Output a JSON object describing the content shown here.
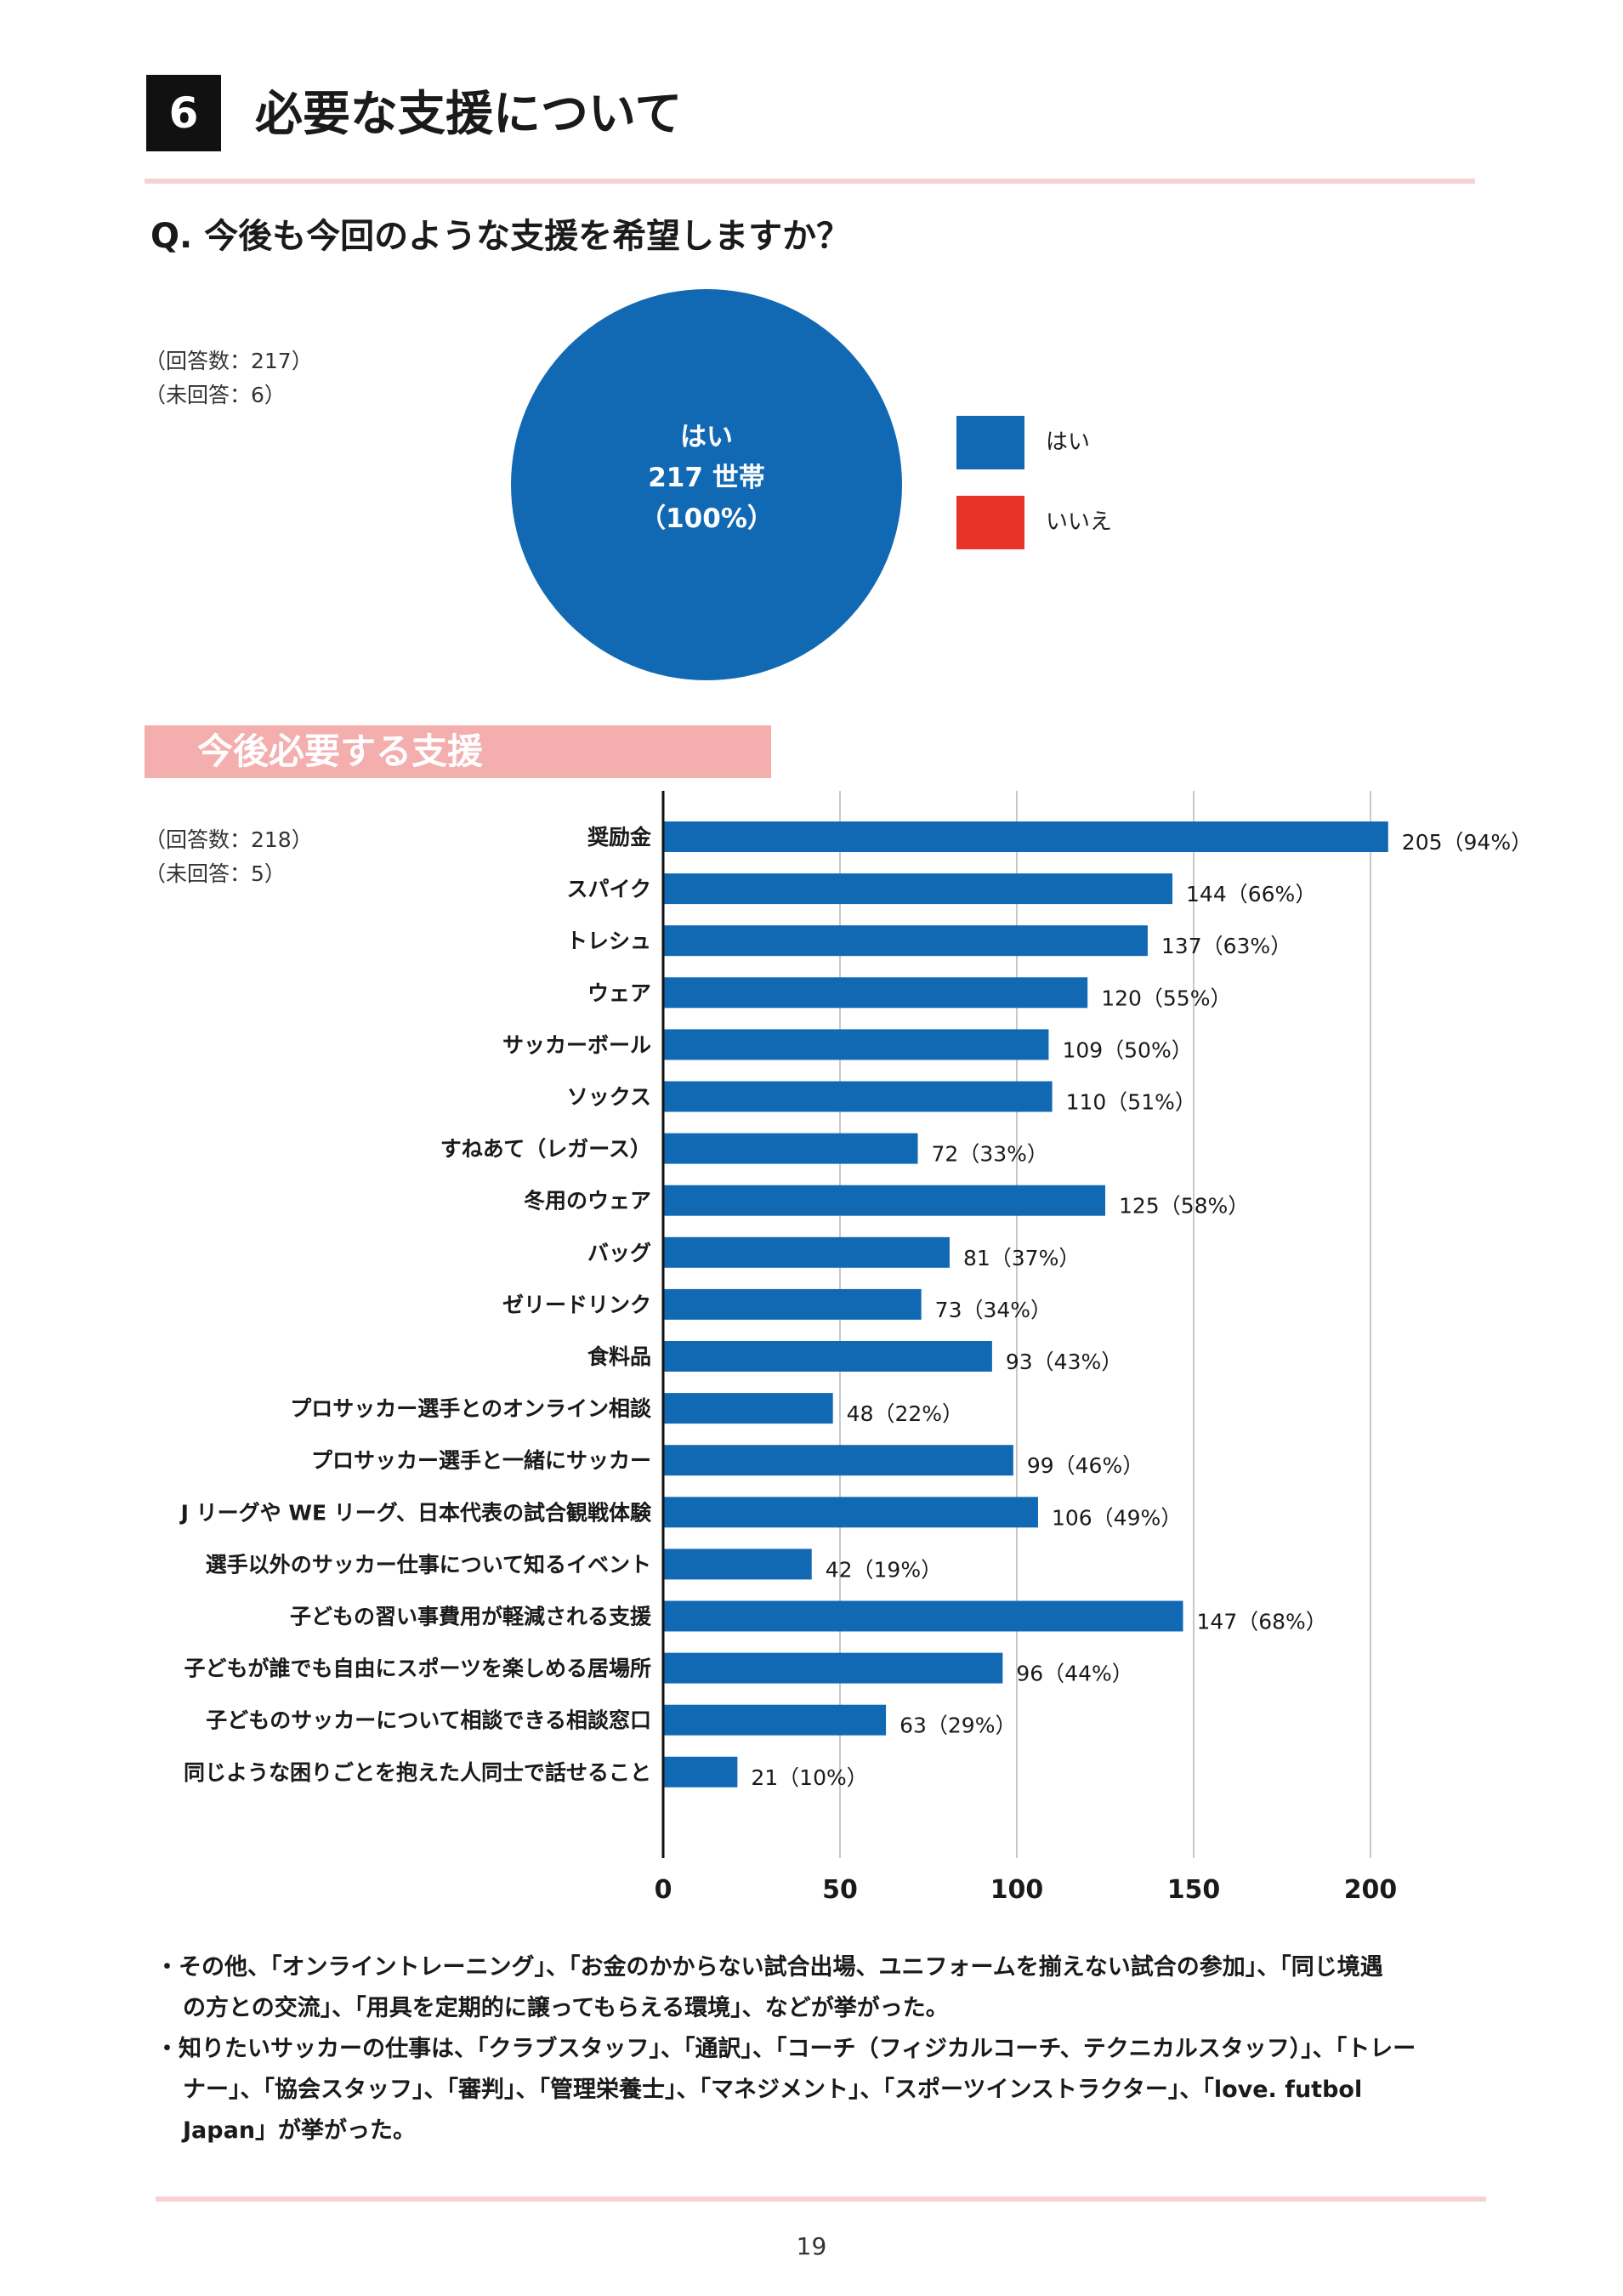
{
  "section": {
    "number": "6",
    "title": "必要な支援について"
  },
  "question": "Q. 今後も今回のような支援を希望しますか？",
  "pie_meta": {
    "responses": "（回答数：217）",
    "no_answer": "（未回答：6）"
  },
  "pie_label": {
    "line1": "はい",
    "line2": "217 世帯",
    "line3": "（100%）"
  },
  "legend": [
    {
      "label": "はい",
      "color": "#1269b3"
    },
    {
      "label": "いいえ",
      "color": "#e8332a"
    }
  ],
  "subheading": "今後必要する支援",
  "bar_meta": {
    "responses": "（回答数：218）",
    "no_answer": "（未回答：5）"
  },
  "colors": {
    "bar": "#1269b3",
    "pie": "#1269b3",
    "banner": "#f4aeae",
    "rule": "#f6d2d2"
  },
  "chart_data": [
    {
      "type": "pie",
      "categories": [
        "はい",
        "いいえ"
      ],
      "values": [
        217,
        0
      ]
    },
    {
      "type": "bar",
      "orientation": "horizontal",
      "categories": [
        "奨励金",
        "スパイク",
        "トレシュ",
        "ウェア",
        "サッカーボール",
        "ソックス",
        "すねあて（レガース）",
        "冬用のウェア",
        "バッグ",
        "ゼリードリンク",
        "食料品",
        "プロサッカー選手とのオンライン相談",
        "プロサッカー選手と一緒にサッカー",
        "J リーグや WE リーグ、日本代表の試合観戦体験",
        "選手以外のサッカー仕事について知るイベント",
        "子どもの習い事費用が軽減される支援",
        "子どもが誰でも自由にスポーツを楽しめる居場所",
        "子どものサッカーについて相談できる相談窓口",
        "同じような困りごとを抱えた人同士で話せること"
      ],
      "values": [
        205,
        144,
        137,
        120,
        109,
        110,
        72,
        125,
        81,
        73,
        93,
        48,
        99,
        106,
        42,
        147,
        96,
        63,
        21
      ],
      "value_labels": [
        "205（94%）",
        "144（66%）",
        "137（63%）",
        "120（55%）",
        "109（50%）",
        "110（51%）",
        "72（33%）",
        "125（58%）",
        "81（37%）",
        "73（34%）",
        "93（43%）",
        "48（22%）",
        "99（46%）",
        "106（49%）",
        "42（19%）",
        "147（68%）",
        "96（44%）",
        "63（29%）",
        "21（10%）"
      ],
      "x_ticks": [
        "0",
        "50",
        "100",
        "150",
        "200"
      ],
      "xlim": [
        0,
        200
      ],
      "grid": true
    }
  ],
  "notes": {
    "note1_line1": "・その他、「オンライントレーニング」、「お金のかからない試合出場、ユニフォームを揃えない試合の参加」、「同じ境遇",
    "note1_line2": "の方との交流」、「用具を定期的に譲ってもらえる環境」、などが挙がった。",
    "note2_line1": "・知りたいサッカーの仕事は、「クラブスタッフ」、「通訳」、「コーチ（フィジカルコーチ、テクニカルスタッフ）」、「トレー",
    "note2_line2": "ナー」、「協会スタッフ」、「審判」、「管理栄養士」、「マネジメント」、「スポーツインストラクター」、「love. futbol",
    "note2_line3": "Japan」が挙がった。"
  },
  "page_number": "19"
}
